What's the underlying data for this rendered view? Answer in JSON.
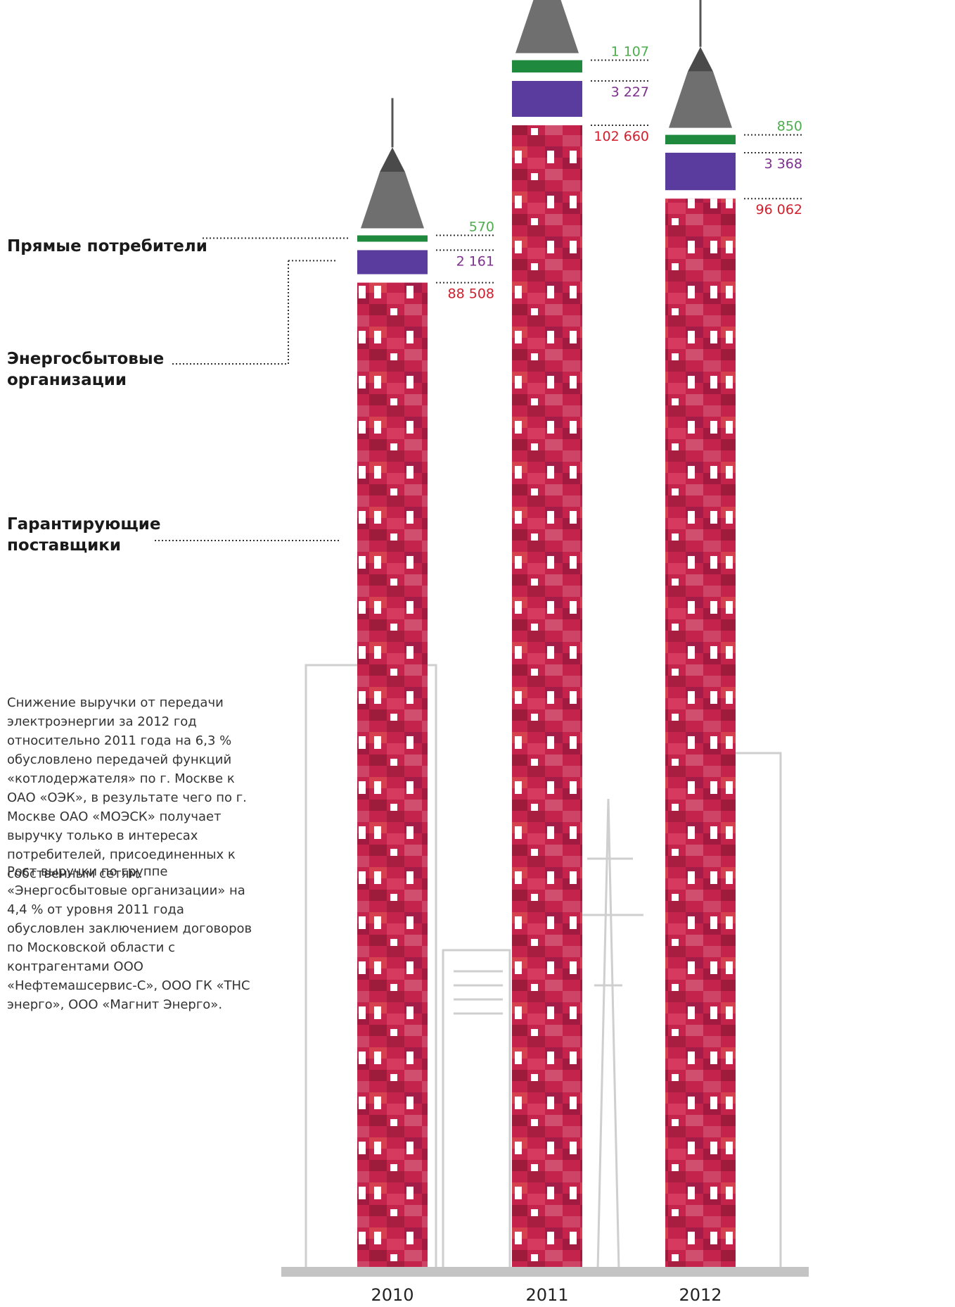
{
  "chart_data": {
    "type": "stacked-tower",
    "categories": [
      "2010",
      "2011",
      "2012"
    ],
    "series": [
      {
        "name": "Гарантирующие поставщики",
        "color": "#c4234b",
        "label_color": "#d0202e",
        "values": [
          88508,
          102660,
          96062
        ],
        "value_labels": [
          "88 508",
          "102 660",
          "96 062"
        ]
      },
      {
        "name": "Энергосбытовые организации",
        "color": "#5a3c9e",
        "label_color": "#7d2f8c",
        "values": [
          2161,
          3227,
          3368
        ],
        "value_labels": [
          "2 161",
          "3 227",
          "3 368"
        ]
      },
      {
        "name": "Прямые потребители",
        "color": "#1f8a3e",
        "label_color": "#4cae4c",
        "values": [
          570,
          1107,
          850
        ],
        "value_labels": [
          "570",
          "1 107",
          "850"
        ]
      }
    ],
    "notes": [
      "Снижение выручки от передачи электроэнергии за 2012 год относительно 2011 года на 6,3 % обусловлено передачей функций «котлодержателя» по г. Москве к ОАО «ОЭК», в результате чего по г. Москве ОАО «МОЭСК» получает выручку только в интересах потребителей, присоединенных к собственным сетям.",
      "Рост выручки по группе «Энергосбытовые организации» на 4,4 % от уровня 2011 года обусловлен заключением договоров по Московской области с контрагентами ООО «Нефтемашсервис-С», ООО ГК «ТНС энерго», ООО «Магнит Энерго»."
    ]
  }
}
